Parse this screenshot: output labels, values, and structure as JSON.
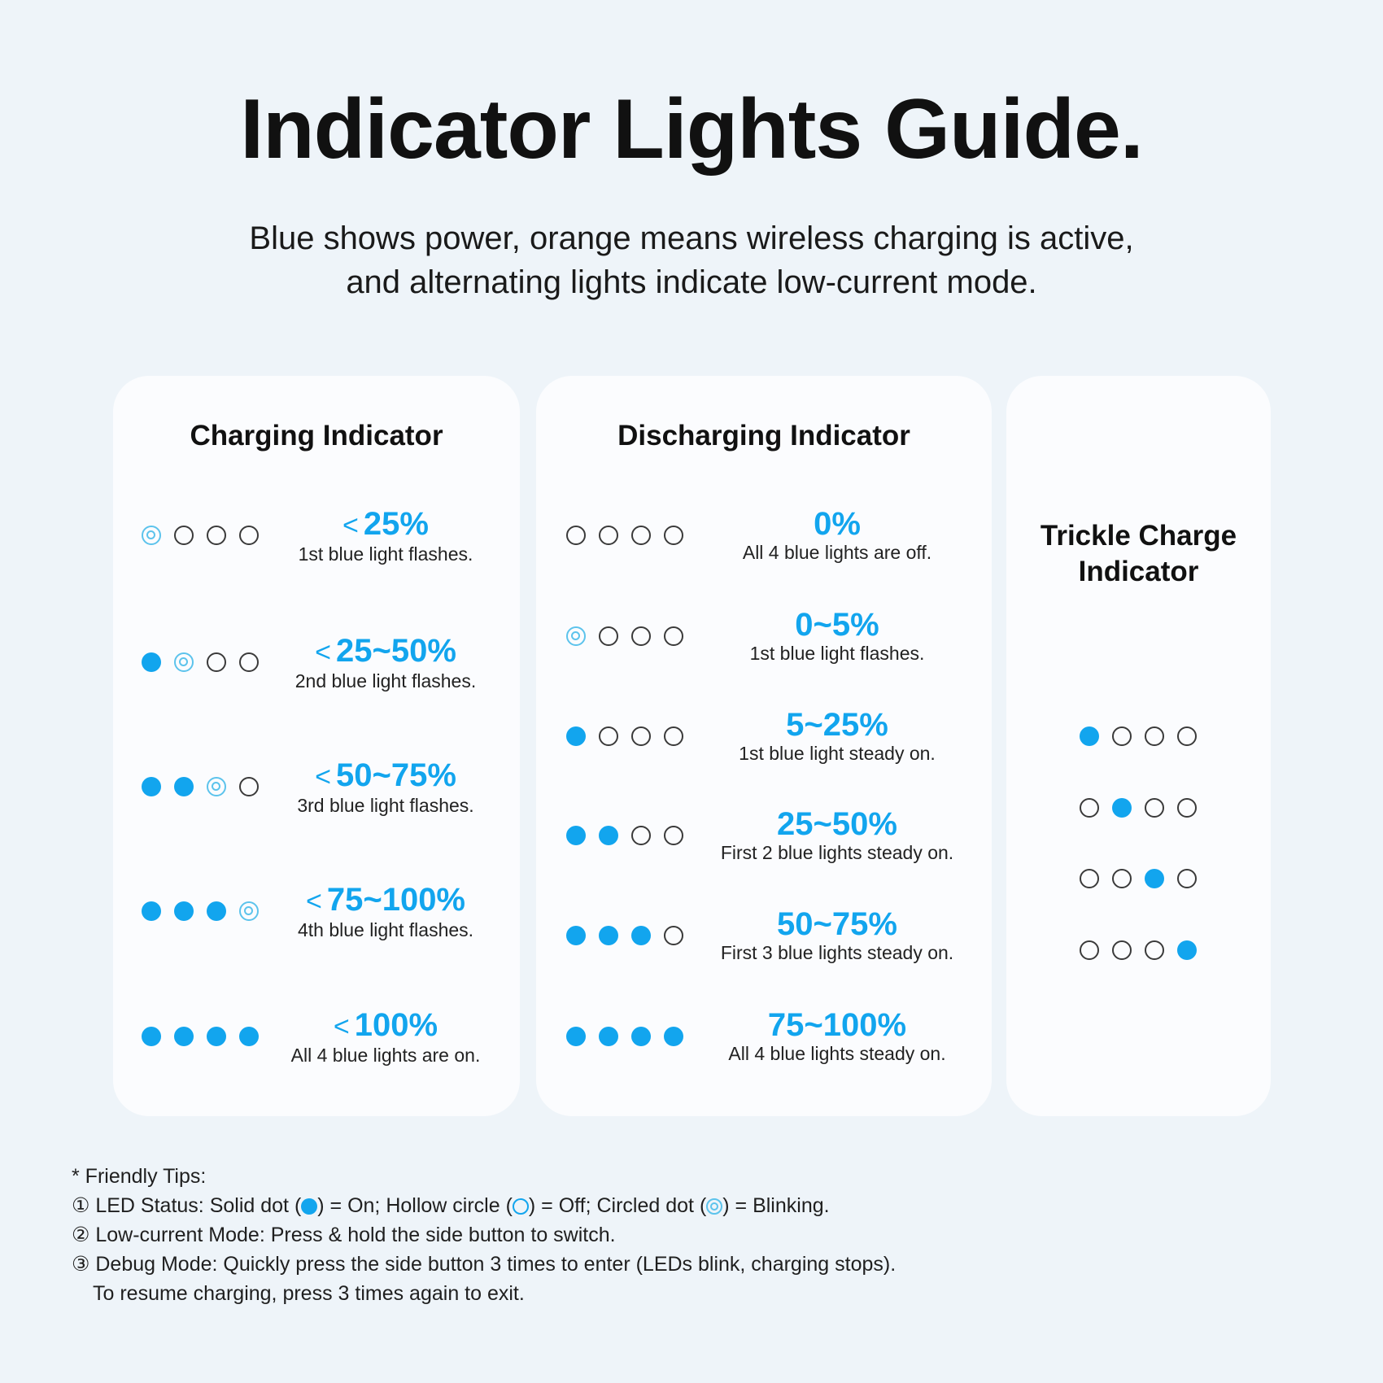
{
  "header": {
    "title": "Indicator Lights Guide.",
    "subtitle_line1": "Blue shows power, orange means wireless charging is active,",
    "subtitle_line2": "and alternating lights indicate low-current mode."
  },
  "colors": {
    "accent": "#12a5ee",
    "blink": "#5cc3ec",
    "background": "#eef4f9",
    "card": "#fbfcfe"
  },
  "charging": {
    "title": "Charging Indicator",
    "rows": [
      {
        "lt": "<",
        "pct": "25%",
        "desc": "1st blue light flashes.",
        "dots": [
          "blink",
          "off",
          "off",
          "off"
        ]
      },
      {
        "lt": "<",
        "pct": "25~50%",
        "desc": "2nd blue light flashes.",
        "dots": [
          "on",
          "blink",
          "off",
          "off"
        ]
      },
      {
        "lt": "<",
        "pct": "50~75%",
        "desc": "3rd blue light flashes.",
        "dots": [
          "on",
          "on",
          "blink",
          "off"
        ]
      },
      {
        "lt": "<",
        "pct": "75~100%",
        "desc": "4th blue light flashes.",
        "dots": [
          "on",
          "on",
          "on",
          "blink"
        ]
      },
      {
        "lt": "<",
        "pct": "100%",
        "desc": "All 4 blue lights are on.",
        "dots": [
          "on",
          "on",
          "on",
          "on"
        ]
      }
    ]
  },
  "discharging": {
    "title": "Discharging Indicator",
    "rows": [
      {
        "pct": "0%",
        "desc": "All 4 blue lights are off.",
        "dots": [
          "off",
          "off",
          "off",
          "off"
        ]
      },
      {
        "pct": "0~5%",
        "desc": "1st blue light flashes.",
        "dots": [
          "blink",
          "off",
          "off",
          "off"
        ]
      },
      {
        "pct": "5~25%",
        "desc": "1st blue light steady on.",
        "dots": [
          "on",
          "off",
          "off",
          "off"
        ]
      },
      {
        "pct": "25~50%",
        "desc": "First 2 blue lights steady on.",
        "dots": [
          "on",
          "on",
          "off",
          "off"
        ]
      },
      {
        "pct": "50~75%",
        "desc": "First 3 blue lights steady on.",
        "dots": [
          "on",
          "on",
          "on",
          "off"
        ]
      },
      {
        "pct": "75~100%",
        "desc": "All 4 blue lights steady on.",
        "dots": [
          "on",
          "on",
          "on",
          "on"
        ]
      }
    ]
  },
  "trickle": {
    "title_line1": "Trickle Charge",
    "title_line2": "Indicator",
    "rows": [
      {
        "dots": [
          "on",
          "off",
          "off",
          "off"
        ]
      },
      {
        "dots": [
          "off",
          "on",
          "off",
          "off"
        ]
      },
      {
        "dots": [
          "off",
          "off",
          "on",
          "off"
        ]
      },
      {
        "dots": [
          "off",
          "off",
          "off",
          "on"
        ]
      }
    ]
  },
  "tips": {
    "heading": "* Friendly Tips:",
    "tip1_a": "① LED Status: Solid dot (",
    "tip1_b": ") = On; Hollow circle (",
    "tip1_c": ") = Off; Circled dot (",
    "tip1_d": ") = Blinking.",
    "tip2": "② Low-current Mode: Press & hold the side button to switch.",
    "tip3": "③ Debug Mode: Quickly press the side button 3 times to enter (LEDs blink, charging stops).",
    "tip3_cont": "To resume charging, press 3 times again to exit."
  }
}
